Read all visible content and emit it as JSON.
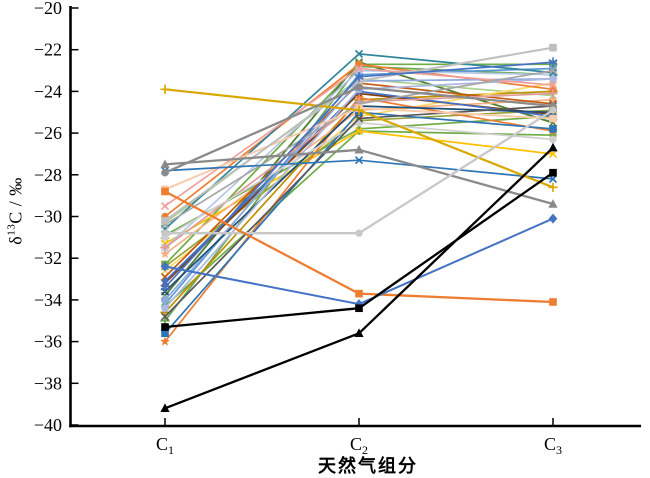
{
  "chart_data": {
    "type": "line",
    "title": "",
    "xlabel": "天然气组分",
    "ylabel": {
      "pre": "δ",
      "sup": "13",
      "post": "C / ‰"
    },
    "ylim": [
      -40,
      -20
    ],
    "grid": false,
    "legend": "none",
    "axis_color": "#000000",
    "background": "#ffffff",
    "yticks": [
      {
        "v": -20,
        "label": "−20"
      },
      {
        "v": -22,
        "label": "−22"
      },
      {
        "v": -24,
        "label": "−24"
      },
      {
        "v": -26,
        "label": "−26"
      },
      {
        "v": -28,
        "label": "−28"
      },
      {
        "v": -30,
        "label": "−30"
      },
      {
        "v": -32,
        "label": "−32"
      },
      {
        "v": -34,
        "label": "−34"
      },
      {
        "v": -36,
        "label": "−36"
      },
      {
        "v": -38,
        "label": "−38"
      },
      {
        "v": -40,
        "label": "−40"
      }
    ],
    "categories": [
      {
        "base": "C",
        "sub": "1"
      },
      {
        "base": "C",
        "sub": "2"
      },
      {
        "base": "C",
        "sub": "3"
      }
    ],
    "series": [
      {
        "name": "green-square",
        "color": "#70ad47",
        "marker": "square",
        "width": 1.7,
        "values": [
          -32.3,
          -22.7,
          -22.7
        ]
      },
      {
        "name": "darkgreen-x",
        "color": "#548235",
        "marker": "x",
        "width": 1.9,
        "values": [
          -33.8,
          -22.6,
          -25.5
        ]
      },
      {
        "name": "green-triangle",
        "color": "#70ad47",
        "marker": "triangle",
        "width": 1.7,
        "values": [
          -30.9,
          -25.8,
          -25.2
        ]
      },
      {
        "name": "lightgreen-x",
        "color": "#a9d18e",
        "marker": "x",
        "width": 1.7,
        "values": [
          -30.3,
          -23.4,
          -24.2
        ]
      },
      {
        "name": "green-plus",
        "color": "#6aa84f",
        "marker": "plus",
        "width": 1.7,
        "values": [
          -35.0,
          -22.8,
          -23.2
        ]
      },
      {
        "name": "green-circle",
        "color": "#70ad47",
        "marker": "circle",
        "width": 1.7,
        "values": [
          -34.3,
          -25.9,
          -26.1
        ]
      },
      {
        "name": "gold-x",
        "color": "#ffc000",
        "marker": "x",
        "width": 1.7,
        "values": [
          -31.3,
          -25.9,
          -27.0
        ]
      },
      {
        "name": "darkgold-plus",
        "color": "#bf9000",
        "marker": "plus",
        "width": 1.7,
        "values": [
          -34.6,
          -24.4,
          -24.0
        ]
      },
      {
        "name": "lightgold-x",
        "color": "#ffd966",
        "marker": "x",
        "width": 1.7,
        "values": [
          -32.6,
          -25.2,
          -23.6
        ]
      },
      {
        "name": "olive-x",
        "color": "#98a33c",
        "marker": "x",
        "width": 1.7,
        "values": [
          -32.4,
          -25.4,
          -24.9
        ]
      },
      {
        "name": "orange-circle",
        "color": "#ed7d31",
        "marker": "circle",
        "width": 1.7,
        "values": [
          -30.0,
          -22.7,
          -23.9
        ]
      },
      {
        "name": "tan-star",
        "color": "#f4b183",
        "marker": "star",
        "width": 1.7,
        "values": [
          -31.8,
          -24.9,
          -24.4
        ]
      },
      {
        "name": "rust-x",
        "color": "#c55a11",
        "marker": "x",
        "width": 1.7,
        "values": [
          -32.9,
          -23.6,
          -24.6
        ]
      },
      {
        "name": "brown-x",
        "color": "#843c0c",
        "marker": "x",
        "width": 1.7,
        "values": [
          -33.2,
          -24.1,
          -25.1
        ]
      },
      {
        "name": "orange-star",
        "color": "#ed7d31",
        "marker": "star",
        "width": 1.7,
        "values": [
          -36.0,
          -24.3,
          -25.9
        ]
      },
      {
        "name": "blue-star",
        "color": "#4472c4",
        "marker": "star",
        "width": 1.7,
        "values": [
          -33.1,
          -24.0,
          -25.2
        ]
      },
      {
        "name": "lightblue-x",
        "color": "#5b9bd5",
        "marker": "x",
        "width": 1.7,
        "values": [
          -34.2,
          -23.2,
          -22.9
        ]
      },
      {
        "name": "paleblue-diamond",
        "color": "#8faadc",
        "marker": "diamond",
        "width": 1.7,
        "values": [
          -34.0,
          -23.5,
          -23.4
        ]
      },
      {
        "name": "mediumblue-square",
        "color": "#2e75b6",
        "marker": "square",
        "width": 1.7,
        "values": [
          -35.6,
          -25.0,
          -25.8
        ]
      },
      {
        "name": "navy-x",
        "color": "#1f4e79",
        "marker": "x",
        "width": 1.7,
        "values": [
          -33.6,
          -24.7,
          -25.0
        ]
      },
      {
        "name": "palestblue-x",
        "color": "#b4c7e7",
        "marker": "x",
        "width": 1.7,
        "values": [
          -31.5,
          -23.0,
          -23.2
        ]
      },
      {
        "name": "lavender-circle",
        "color": "#adb9e3",
        "marker": "circle",
        "width": 1.7,
        "values": [
          -34.4,
          -23.9,
          -23.4
        ]
      },
      {
        "name": "teal-x",
        "color": "#31859c",
        "marker": "x",
        "width": 1.7,
        "values": [
          -30.6,
          -22.2,
          -23.1
        ]
      },
      {
        "name": "salmon-x",
        "color": "#f19f9b",
        "marker": "x",
        "width": 1.7,
        "values": [
          -29.5,
          -22.9,
          -23.7
        ]
      },
      {
        "name": "rose-plus",
        "color": "#de9d9b",
        "marker": "plus",
        "width": 1.7,
        "values": [
          -31.5,
          -24.5,
          -24.1
        ]
      },
      {
        "name": "midgray-x",
        "color": "#a6a6a6",
        "marker": "x",
        "width": 1.7,
        "values": [
          -30.4,
          -24.6,
          -23.0
        ]
      },
      {
        "name": "lightgray2-circle",
        "color": "#d0cece",
        "marker": "circle",
        "width": 1.7,
        "values": [
          -31.0,
          -25.5,
          -26.3
        ]
      },
      {
        "name": "darkgray-x",
        "color": "#595959",
        "marker": "x",
        "width": 1.7,
        "values": [
          -34.8,
          -25.3,
          -24.7
        ]
      },
      {
        "name": "peach-square",
        "color": "#f8cbad",
        "marker": "square",
        "width": 2.0,
        "values": [
          -28.7,
          -24.8,
          -25.3
        ]
      },
      {
        "name": "lightgray-square",
        "color": "#bfbfbf",
        "marker": "square",
        "width": 2.0,
        "values": [
          -30.2,
          -23.5,
          -21.9
        ]
      },
      {
        "name": "blue-asterisk",
        "color": "#4472c4",
        "marker": "asterisk",
        "width": 1.7,
        "values": [
          -33.4,
          -23.3,
          -22.6
        ]
      },
      {
        "name": "steelblue-x",
        "color": "#2e75b6",
        "marker": "x",
        "width": 1.7,
        "values": [
          -27.8,
          -27.3,
          -28.2
        ]
      },
      {
        "name": "gold-plus",
        "color": "#d8a800",
        "marker": "plus",
        "width": 2.2,
        "values": [
          -23.9,
          -24.9,
          -28.6
        ]
      },
      {
        "name": "gray-circle",
        "color": "#8a8a8a",
        "marker": "circle",
        "width": 2.3,
        "values": [
          -27.9,
          -23.8,
          -24.7
        ]
      },
      {
        "name": "gray-triangle",
        "color": "#8a8a8a",
        "marker": "triangle",
        "width": 2.3,
        "values": [
          -27.5,
          -26.8,
          -29.4
        ]
      },
      {
        "name": "lightgray-circle",
        "color": "#c8c8c8",
        "marker": "circle",
        "width": 2.3,
        "values": [
          -30.8,
          -30.8,
          -24.9
        ]
      },
      {
        "name": "orange-square",
        "color": "#ed7d31",
        "marker": "square",
        "width": 2.3,
        "values": [
          -28.8,
          -33.7,
          -34.1
        ]
      },
      {
        "name": "blue-diamond",
        "color": "#4472c4",
        "marker": "diamond",
        "width": 2.0,
        "values": [
          -32.4,
          -34.2,
          -30.1
        ]
      },
      {
        "name": "black-square",
        "color": "#000000",
        "marker": "square",
        "width": 2.3,
        "values": [
          -35.3,
          -34.4,
          -27.9
        ]
      },
      {
        "name": "black-triangle",
        "color": "#000000",
        "marker": "triangle",
        "width": 2.3,
        "values": [
          -39.2,
          -35.6,
          -26.7
        ]
      }
    ]
  }
}
